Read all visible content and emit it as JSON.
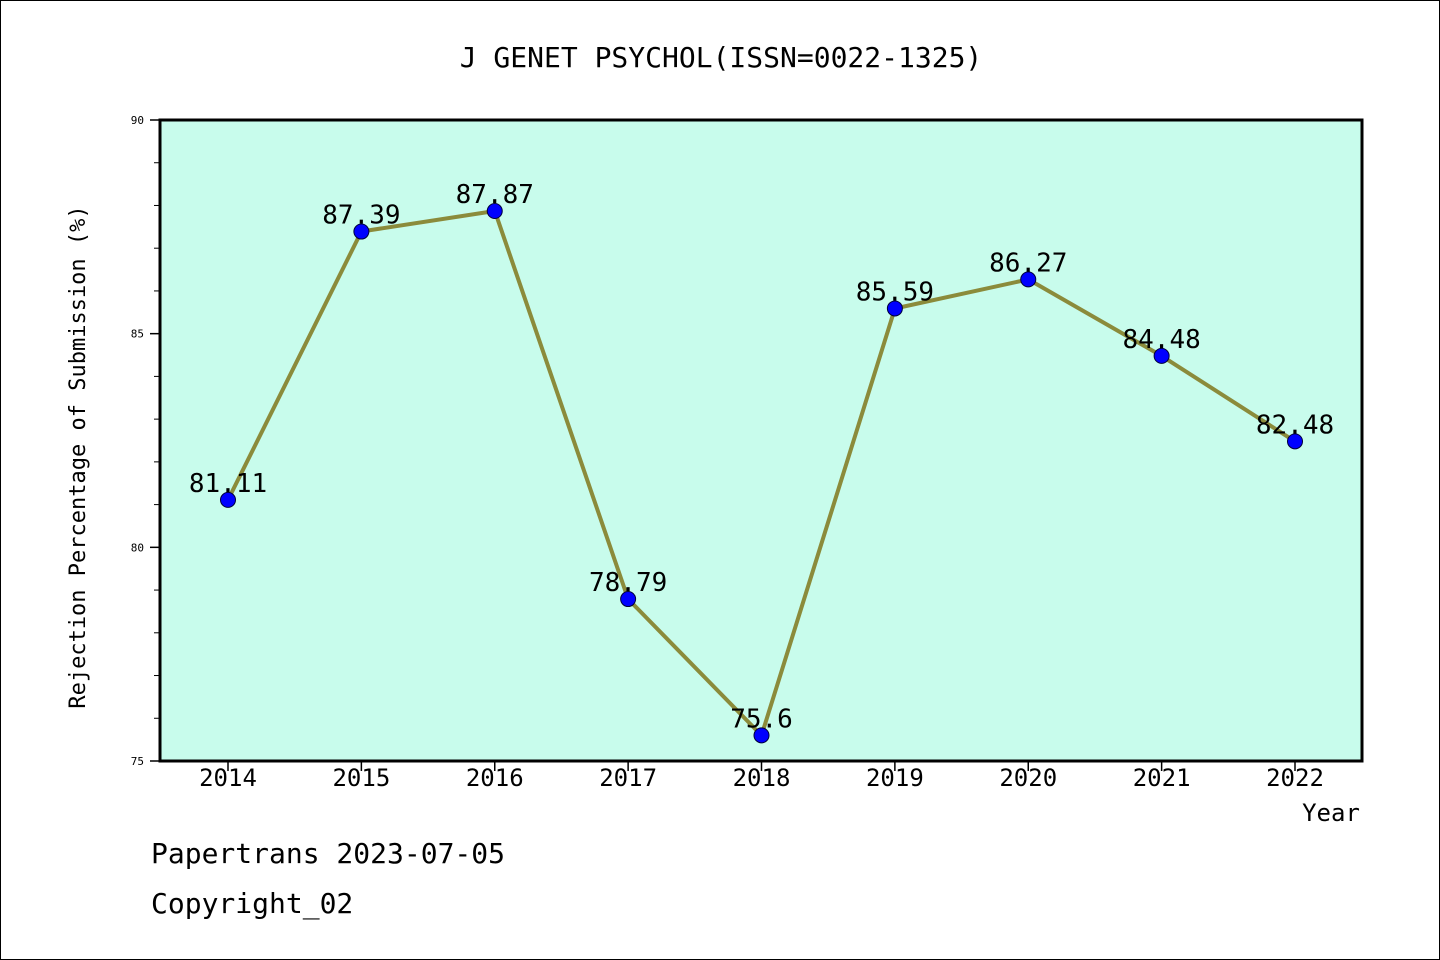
{
  "chart_data": {
    "type": "line",
    "title": "J GENET PSYCHOL(ISSN=0022-1325)",
    "xlabel": "Year",
    "ylabel": "Rejection Percentage of Submission (%)",
    "categories": [
      "2014",
      "2015",
      "2016",
      "2017",
      "2018",
      "2019",
      "2020",
      "2021",
      "2022"
    ],
    "series": [
      {
        "values": [
          81.11,
          87.39,
          87.87,
          78.79,
          75.6,
          85.59,
          86.27,
          84.48,
          82.48
        ],
        "labels": [
          "81.11",
          "87.39",
          "87.87",
          "78.79",
          "75.6",
          "85.59",
          "86.27",
          "84.48",
          "82.48"
        ]
      }
    ],
    "ylim": [
      75,
      90
    ],
    "yticks": [
      75,
      80,
      85,
      90
    ],
    "ytick_labels": [
      "75",
      "80",
      "85",
      "90"
    ],
    "yminor_step": 1,
    "grid": false,
    "colors": {
      "plot_background": "#c8fcec",
      "line": "#8b8b3b",
      "marker": "#0000ff"
    }
  },
  "footer": {
    "line1": "Papertrans 2023-07-05",
    "line2": "Copyright_02"
  }
}
